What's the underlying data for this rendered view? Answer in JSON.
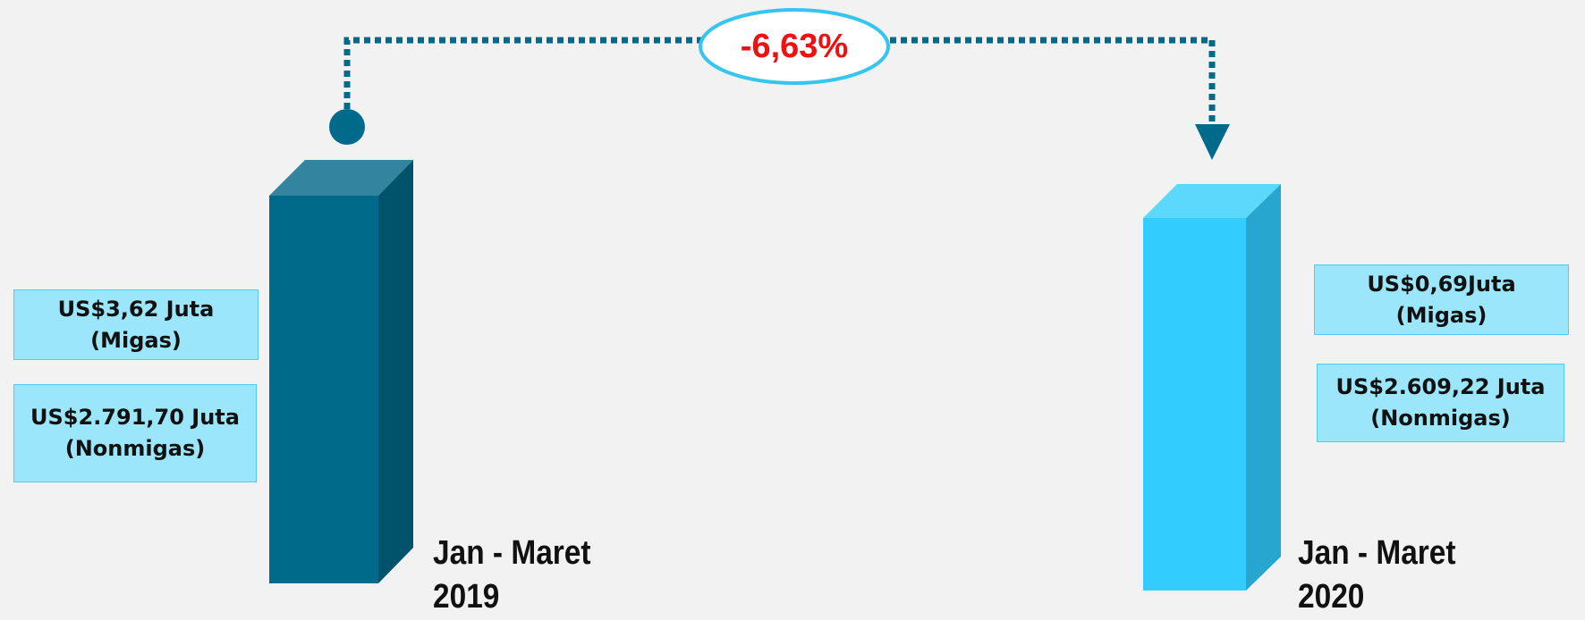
{
  "change": "-6,63%",
  "periods": [
    {
      "label": "Jan - Maret",
      "year": "2019",
      "boxes": [
        {
          "value": "US$3,62 Juta",
          "type": "(Migas)"
        },
        {
          "value": "US$2.791,70 Juta",
          "type": "(Nonmigas)"
        }
      ]
    },
    {
      "label": "Jan - Maret",
      "year": "2020",
      "boxes": [
        {
          "value": "US$0,69Juta",
          "type": "(Migas)"
        },
        {
          "value": "US$2.609,22 Juta",
          "type": "(Nonmigas)"
        }
      ]
    }
  ]
}
